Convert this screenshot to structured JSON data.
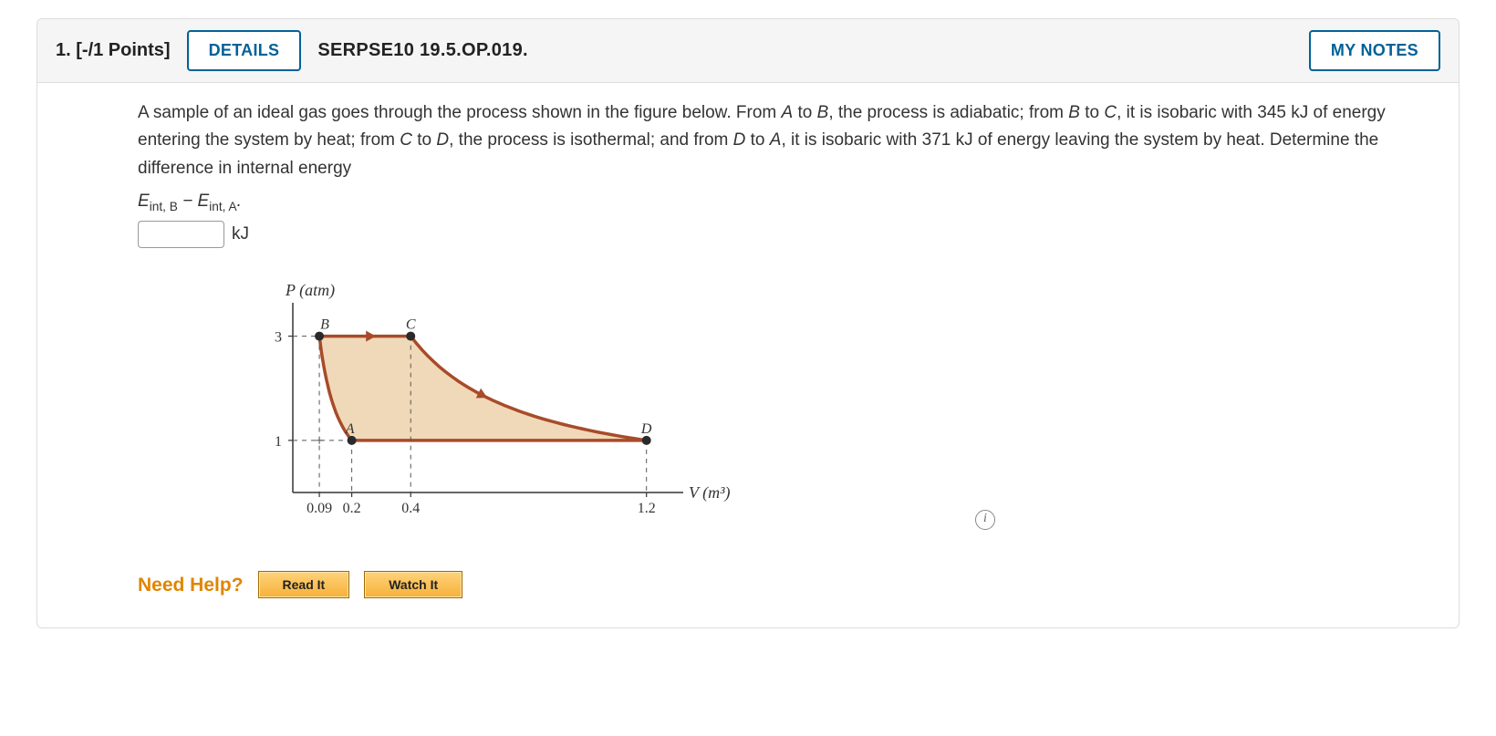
{
  "header": {
    "number": "1.",
    "points": "[-/1 Points]",
    "details_label": "DETAILS",
    "code": "SERPSE10 19.5.OP.019.",
    "my_notes_label": "MY NOTES"
  },
  "problem": {
    "text_parts": {
      "p1": "A sample of an ideal gas goes through the process shown in the figure below. From ",
      "A": "A",
      "p2": " to ",
      "B": "B",
      "p3": ", the process is adiabatic; from ",
      "p4": " to ",
      "C": "C",
      "p5": ", it is isobaric with 345 kJ of energy entering the system by heat; from ",
      "p6": " to ",
      "D": "D",
      "p7": ", the process is isothermal; and from ",
      "p8": " to ",
      "p9": ", it is isobaric with 371 kJ of energy leaving the system by heat. Determine the difference in internal energy"
    },
    "formula": {
      "E1": "E",
      "sub1": "int, B",
      "minus": " − ",
      "E2": "E",
      "sub2": "int, A",
      "dot": "."
    },
    "unit": "kJ"
  },
  "figure": {
    "ylabel": "P (atm)",
    "xlabel": "V (m³)",
    "y_ticks": [
      {
        "val": 1,
        "label": "1"
      },
      {
        "val": 3,
        "label": "3"
      }
    ],
    "x_ticks": [
      {
        "val": 0.09,
        "label": "0.09"
      },
      {
        "val": 0.2,
        "label": "0.2"
      },
      {
        "val": 0.4,
        "label": "0.4"
      },
      {
        "val": 1.2,
        "label": "1.2"
      }
    ],
    "points": {
      "A": {
        "x": 0.2,
        "y": 1,
        "label": "A"
      },
      "B": {
        "x": 0.09,
        "y": 3,
        "label": "B"
      },
      "C": {
        "x": 0.4,
        "y": 3,
        "label": "C"
      },
      "D": {
        "x": 1.2,
        "y": 1,
        "label": "D"
      }
    },
    "fill_color": "#f0d9b8",
    "line_color": "#a84b2a",
    "line_width": 3.5,
    "point_color": "#2a2a2a",
    "point_radius": 5,
    "axis_color": "#333",
    "tick_font_size": 16,
    "label_font_size": 18
  },
  "help": {
    "label": "Need Help?",
    "read_it": "Read It",
    "watch_it": "Watch It"
  }
}
